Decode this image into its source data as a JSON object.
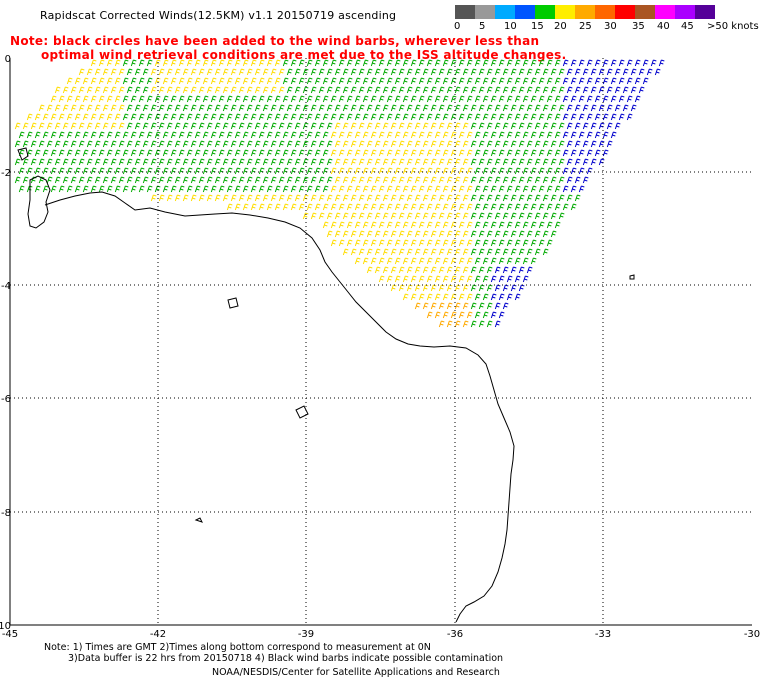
{
  "title": "Rapidscat Corrected Winds(12.5KM) v1.1 20150719 ascending",
  "note_red": {
    "line1": "Note: black circles have been added to the wind barbs, wherever less than",
    "line2": "optimal wind retrieval conditions are met due to the ISS altitude changes."
  },
  "legend": {
    "colors": [
      "#555555",
      "#999999",
      "#00aaff",
      "#0055ff",
      "#00cc00",
      "#ffee00",
      "#ffaa00",
      "#ff6600",
      "#ff0000",
      "#aa5522",
      "#ff00ff",
      "#aa00ff",
      "#550099"
    ],
    "labels": [
      "0",
      "5",
      "10",
      "15",
      "20",
      "25",
      "30",
      "35",
      "40",
      "45",
      ">50 knots"
    ]
  },
  "axes": {
    "lon_labels": [
      "-45",
      "-42",
      "-39",
      "-36",
      "-33",
      "-30"
    ],
    "lat_labels": [
      "0",
      "-2",
      "-4",
      "-6",
      "-8",
      "-10"
    ]
  },
  "footer": {
    "line1": "Note: 1) Times are GMT 2)Times along bottom correspond to measurement at 0N",
    "line2": "3)Data buffer is 22 hrs from 20150718 4) Black wind barbs indicate possible contamination",
    "line3": "NOAA/NESDIS/Center for Satellite Applications and Research"
  },
  "colors": {
    "barb_green": "#00aa00",
    "barb_dark_green": "#007700",
    "barb_yellow": "#ffdd00",
    "barb_orange": "#ffaa00",
    "barb_blue": "#0000cc",
    "grid": "#000000",
    "note": "#ff0000"
  }
}
